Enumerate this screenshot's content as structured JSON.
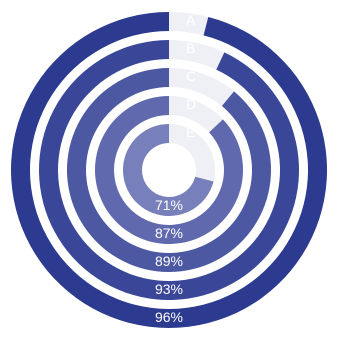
{
  "chart_data": {
    "type": "radial-bar",
    "title": "",
    "value_max": 100,
    "track_color": "#eef0f5",
    "series": [
      {
        "name": "A",
        "value": 96,
        "label": "96%",
        "color": "#2c3a8f"
      },
      {
        "name": "B",
        "value": 93,
        "label": "93%",
        "color": "#3a4697"
      },
      {
        "name": "C",
        "value": 89,
        "label": "89%",
        "color": "#4d58a3"
      },
      {
        "name": "D",
        "value": 87,
        "label": "87%",
        "color": "#6069ae"
      },
      {
        "name": "E",
        "value": 71,
        "label": "71%",
        "color": "#7880bb"
      }
    ]
  }
}
